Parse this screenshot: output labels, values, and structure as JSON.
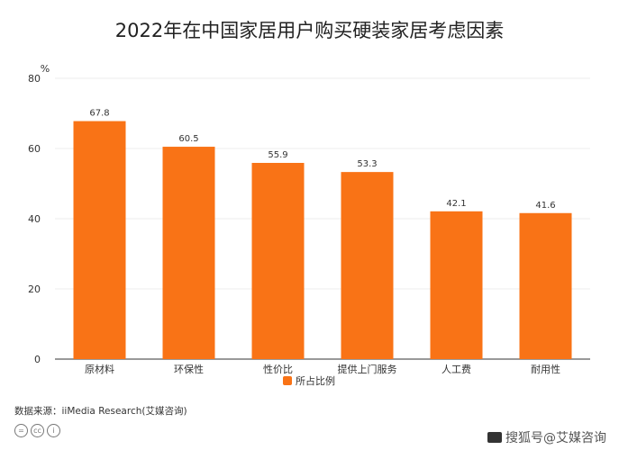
{
  "title": "2022年在中国家居用户购买硬装家居考虑因素",
  "source": "数据来源：iiMedia Research(艾媒咨询)",
  "license_icons": [
    "cc-equal-icon",
    "cc-icon",
    "cc-by-icon"
  ],
  "watermark": "搜狐号@艾媒咨询",
  "colors": {
    "bar": "#f97316",
    "grid": "#eeeeee",
    "axis": "#333333"
  },
  "chart_data": {
    "type": "bar",
    "title": "2022年在中国家居用户购买硬装家居考虑因素",
    "xlabel": "",
    "ylabel": "%",
    "categories": [
      "原材料",
      "环保性",
      "性价比",
      "提供上门服务",
      "人工费",
      "耐用性"
    ],
    "series": [
      {
        "name": "所占比例",
        "values": [
          67.8,
          60.5,
          55.9,
          53.3,
          42.1,
          41.6
        ]
      }
    ],
    "ylim": [
      0,
      80
    ],
    "yticks": [
      0,
      20,
      40,
      60,
      80
    ],
    "grid": true,
    "legend": "bottom-center"
  }
}
